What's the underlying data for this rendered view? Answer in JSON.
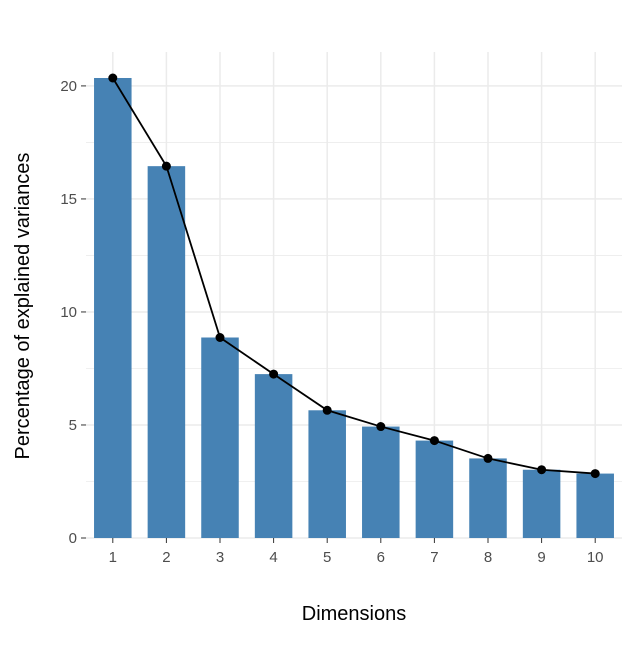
{
  "chart_data": {
    "type": "bar",
    "xlabel": "Dimensions",
    "ylabel": "Percentage of explained variances",
    "categories": [
      "1",
      "2",
      "3",
      "4",
      "5",
      "6",
      "7",
      "8",
      "9",
      "10"
    ],
    "values": [
      20.35,
      16.45,
      8.87,
      7.25,
      5.65,
      4.93,
      4.31,
      3.52,
      3.02,
      2.85
    ],
    "line_overlay": true,
    "ylim": [
      0,
      21.5
    ],
    "yticks": [
      0,
      5,
      10,
      15,
      20
    ],
    "grid": true,
    "colors": {
      "bar": "#4682b4",
      "line": "#000000",
      "grid": "#ebebeb"
    }
  }
}
